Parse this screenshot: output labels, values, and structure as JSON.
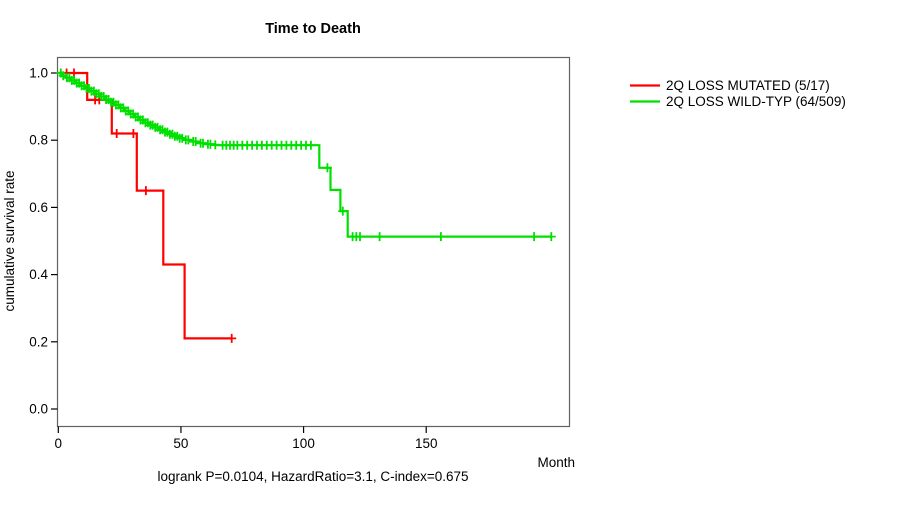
{
  "chart_data": {
    "type": "line",
    "subtype": "kaplan-meier-step",
    "title": "Time to Death",
    "xlabel": "Month",
    "ylabel": "cumulative survival rate",
    "annotation": "logrank P=0.0104, HazardRatio=3.1, C-index=0.675",
    "xlim": [
      0,
      208
    ],
    "ylim": [
      0,
      1.05
    ],
    "xticks": [
      0,
      50,
      100,
      150
    ],
    "yticks": [
      0.0,
      0.2,
      0.4,
      0.6,
      0.8,
      1.0
    ],
    "grid": false,
    "legend_position": "right-outside",
    "series": [
      {
        "name": "2Q LOSS MUTATED (5/17)",
        "color": "#ff0000",
        "steps": [
          [
            0,
            1.0
          ],
          [
            11.8,
            0.92
          ],
          [
            21.8,
            0.82
          ],
          [
            32,
            0.65
          ],
          [
            42.8,
            0.43
          ],
          [
            51.5,
            0.21
          ]
        ],
        "end_month": 70.7,
        "censor_months": [
          3.4,
          6.4,
          15,
          16.7,
          23.8,
          30.6,
          35.7,
          70.7
        ]
      },
      {
        "name": "2Q LOSS WILD-TYP (64/509)",
        "color": "#00e000",
        "steps": [
          [
            0,
            1.0
          ],
          [
            1.5,
            0.992
          ],
          [
            3,
            0.986
          ],
          [
            5,
            0.978
          ],
          [
            7,
            0.97
          ],
          [
            9,
            0.962
          ],
          [
            11,
            0.954
          ],
          [
            13,
            0.946
          ],
          [
            15,
            0.938
          ],
          [
            17,
            0.93
          ],
          [
            19,
            0.921
          ],
          [
            21,
            0.913
          ],
          [
            23,
            0.905
          ],
          [
            25,
            0.896
          ],
          [
            27,
            0.887
          ],
          [
            29,
            0.878
          ],
          [
            31,
            0.869
          ],
          [
            33,
            0.86
          ],
          [
            35,
            0.852
          ],
          [
            37,
            0.845
          ],
          [
            39,
            0.838
          ],
          [
            41,
            0.831
          ],
          [
            43,
            0.824
          ],
          [
            45,
            0.818
          ],
          [
            47,
            0.812
          ],
          [
            49,
            0.806
          ],
          [
            51,
            0.801
          ],
          [
            54,
            0.796
          ],
          [
            57,
            0.791
          ],
          [
            60,
            0.788
          ],
          [
            63,
            0.786
          ],
          [
            65,
            0.785
          ],
          [
            106.4,
            0.718
          ],
          [
            111,
            0.652
          ],
          [
            115,
            0.589
          ],
          [
            118,
            0.513
          ]
        ],
        "end_month": 201,
        "censor_months": [
          1,
          2,
          3.5,
          4.5,
          5.5,
          6.5,
          7.5,
          8.5,
          9.5,
          10.5,
          11.5,
          12.5,
          13.5,
          14.5,
          15.5,
          16.5,
          17.5,
          18.5,
          19.5,
          20.5,
          21.5,
          22.5,
          23.5,
          24.5,
          25.5,
          26.5,
          27.5,
          28.5,
          29.5,
          30.5,
          31.5,
          32.5,
          33.5,
          34.5,
          35.5,
          36.5,
          37.5,
          38.5,
          39.5,
          40.5,
          41.5,
          42.5,
          43.5,
          44.5,
          45.5,
          46.5,
          47.5,
          48.5,
          49.5,
          50.5,
          52,
          53,
          55,
          56,
          58,
          59,
          61,
          62,
          64,
          67,
          68.5,
          70,
          71.5,
          73,
          75,
          77,
          79,
          81,
          83,
          85,
          87,
          89,
          91,
          93,
          95,
          97,
          99,
          101,
          103,
          109.7,
          116,
          120,
          121.5,
          123,
          131,
          156,
          194,
          201
        ]
      }
    ],
    "colors": {
      "axis_box": "#616161",
      "tick": "#000000",
      "text": "#000000",
      "background": "#ffffff"
    }
  }
}
